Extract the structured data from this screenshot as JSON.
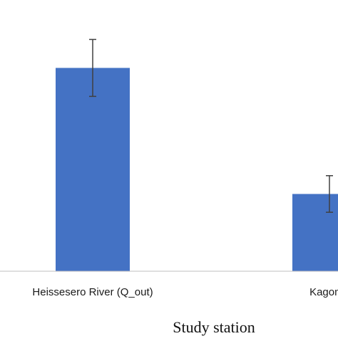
{
  "chart_data": {
    "type": "bar",
    "categories": [
      "Heissesero River (Q_out)",
      "Kagoma"
    ],
    "values": [
      1.0,
      0.38
    ],
    "error": [
      0.14,
      0.09
    ],
    "ylim": [
      0,
      1.25
    ],
    "xlabel": "Study station",
    "ylabel": "",
    "title": "",
    "grid": false,
    "colors": {
      "bar": "#4472C4",
      "error_bar": "#404040",
      "axis": "#bfbfbf"
    }
  }
}
